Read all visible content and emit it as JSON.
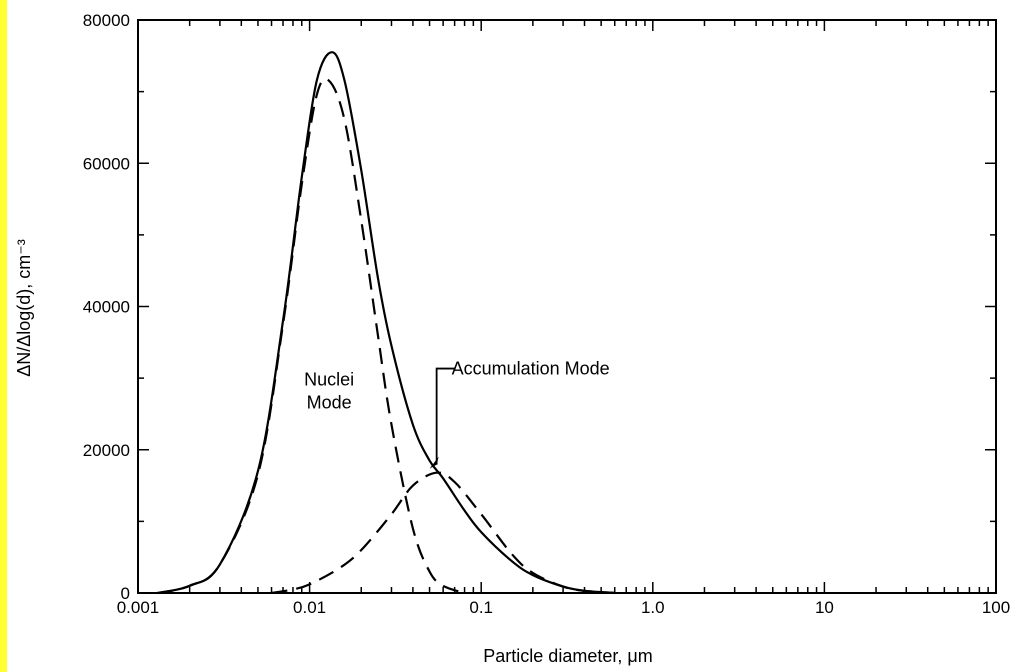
{
  "chart_data": {
    "type": "line",
    "x_scale": "log",
    "xlim": [
      0.001,
      100
    ],
    "ylim": [
      0,
      80000
    ],
    "xlabel": "Particle diameter, μm",
    "ylabel": "ΔN/Δlog(d), cm⁻³",
    "x_ticks": [
      {
        "value": 0.001,
        "label": "0.001"
      },
      {
        "value": 0.01,
        "label": "0.01"
      },
      {
        "value": 0.1,
        "label": "0.1"
      },
      {
        "value": 1,
        "label": "1.0"
      },
      {
        "value": 10,
        "label": "10"
      },
      {
        "value": 100,
        "label": "100"
      }
    ],
    "y_ticks": [
      {
        "value": 0,
        "label": "0"
      },
      {
        "value": 20000,
        "label": "20000"
      },
      {
        "value": 40000,
        "label": "40000"
      },
      {
        "value": 60000,
        "label": "60000"
      },
      {
        "value": 80000,
        "label": "80000"
      }
    ],
    "grid": false,
    "series": [
      {
        "style": "solid",
        "mode": "total",
        "x": [
          0.0013,
          0.002,
          0.003,
          0.005,
          0.007,
          0.009,
          0.011,
          0.0135,
          0.016,
          0.02,
          0.025,
          0.03,
          0.04,
          0.05,
          0.06,
          0.08,
          0.1,
          0.15,
          0.2,
          0.3,
          0.4,
          0.6
        ],
        "y": [
          0,
          1000,
          4000,
          17000,
          38000,
          58000,
          71500,
          75500,
          71500,
          59000,
          44000,
          34500,
          23500,
          18500,
          16000,
          11500,
          8500,
          4500,
          2500,
          900,
          300,
          0
        ]
      },
      {
        "style": "dashed",
        "mode": "nuclei",
        "x": [
          0.0013,
          0.002,
          0.003,
          0.005,
          0.007,
          0.009,
          0.011,
          0.013,
          0.016,
          0.02,
          0.025,
          0.03,
          0.04,
          0.05,
          0.06,
          0.08
        ],
        "y": [
          0,
          1000,
          4000,
          16500,
          37500,
          57000,
          69500,
          71500,
          66000,
          52000,
          36000,
          23500,
          9000,
          3000,
          1000,
          0
        ]
      },
      {
        "style": "dashed",
        "mode": "accumulation",
        "x": [
          0.006,
          0.008,
          0.01,
          0.015,
          0.02,
          0.03,
          0.04,
          0.055,
          0.07,
          0.1,
          0.15,
          0.2,
          0.3,
          0.4,
          0.6
        ],
        "y": [
          0,
          500,
          1200,
          3500,
          6000,
          11000,
          15000,
          16800,
          15500,
          11000,
          5500,
          2800,
          900,
          300,
          0
        ]
      }
    ],
    "annotations": [
      {
        "lines": [
          "Nuclei",
          "Mode"
        ],
        "x": 0.013,
        "y": 29000
      },
      {
        "lines": [
          "Accumulation Mode"
        ],
        "x": 0.07,
        "y": 30500,
        "arrow_to": {
          "x": 0.055,
          "y": 16800
        }
      }
    ]
  }
}
